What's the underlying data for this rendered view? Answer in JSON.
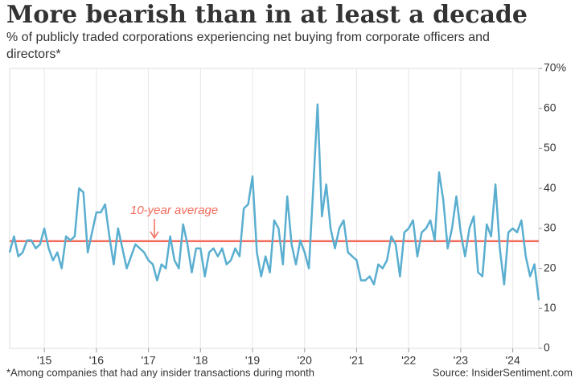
{
  "chart_data": {
    "type": "line",
    "title": "More bearish than in at least a decade",
    "subtitle": "% of publicly traded corporations experiencing net buying from corporate officers and directors*",
    "footnote": "*Among companies that had any insider transactions during month",
    "source": "Source: InsiderSentiment.com",
    "annotation": "10-year average",
    "average": 26.8,
    "average_color": "#f26b5b",
    "categories": [
      null,
      null,
      null,
      null,
      null,
      null,
      null,
      null,
      "'15",
      null,
      null,
      null,
      null,
      null,
      null,
      null,
      null,
      null,
      null,
      null,
      "'16",
      null,
      null,
      null,
      null,
      null,
      null,
      null,
      null,
      null,
      null,
      null,
      "'17",
      null,
      null,
      null,
      null,
      null,
      null,
      null,
      null,
      null,
      null,
      null,
      "'18",
      null,
      null,
      null,
      null,
      null,
      null,
      null,
      null,
      null,
      null,
      null,
      "'19",
      null,
      null,
      null,
      null,
      null,
      null,
      null,
      null,
      null,
      null,
      null,
      "'20",
      null,
      null,
      null,
      null,
      null,
      null,
      null,
      null,
      null,
      null,
      null,
      "'21",
      null,
      null,
      null,
      null,
      null,
      null,
      null,
      null,
      null,
      null,
      null,
      "'22",
      null,
      null,
      null,
      null,
      null,
      null,
      null,
      null,
      null,
      null,
      null,
      "'23",
      null,
      null,
      null,
      null,
      null,
      null,
      null,
      null,
      null,
      null,
      null,
      "'24",
      null,
      null,
      null,
      null,
      null,
      null
    ],
    "series": [
      {
        "name": "Net buying",
        "color": "#5aaed0",
        "values": [
          24,
          28,
          23,
          24,
          27,
          27,
          25,
          26,
          30,
          25,
          22,
          24,
          20,
          28,
          27,
          28,
          40,
          39,
          24,
          29,
          34,
          34,
          36,
          28,
          21,
          30,
          25,
          20,
          23,
          26,
          25,
          24,
          22,
          21,
          17,
          21,
          20,
          28,
          22,
          20,
          31,
          26,
          19,
          25,
          25,
          18,
          24,
          25,
          23,
          25,
          21,
          22,
          25,
          23,
          35,
          36,
          43,
          24,
          18,
          23,
          19,
          32,
          30,
          21,
          38,
          26,
          21,
          27,
          24,
          20,
          40,
          61,
          33,
          41,
          30,
          25,
          30,
          32,
          24,
          23,
          22,
          17,
          17,
          18,
          16,
          21,
          20,
          22,
          28,
          26,
          18,
          29,
          30,
          32,
          23,
          29,
          30,
          32,
          27,
          44,
          37,
          25,
          30,
          38,
          29,
          23,
          30,
          33,
          19,
          18,
          31,
          28,
          41,
          25,
          16,
          29,
          30,
          29,
          32,
          23,
          18,
          21,
          12
        ]
      }
    ],
    "ylim": [
      0,
      70
    ],
    "yticks": [
      0,
      10,
      20,
      30,
      40,
      50,
      60,
      {
        "value": 70,
        "label": "70%"
      }
    ],
    "grid": true
  }
}
